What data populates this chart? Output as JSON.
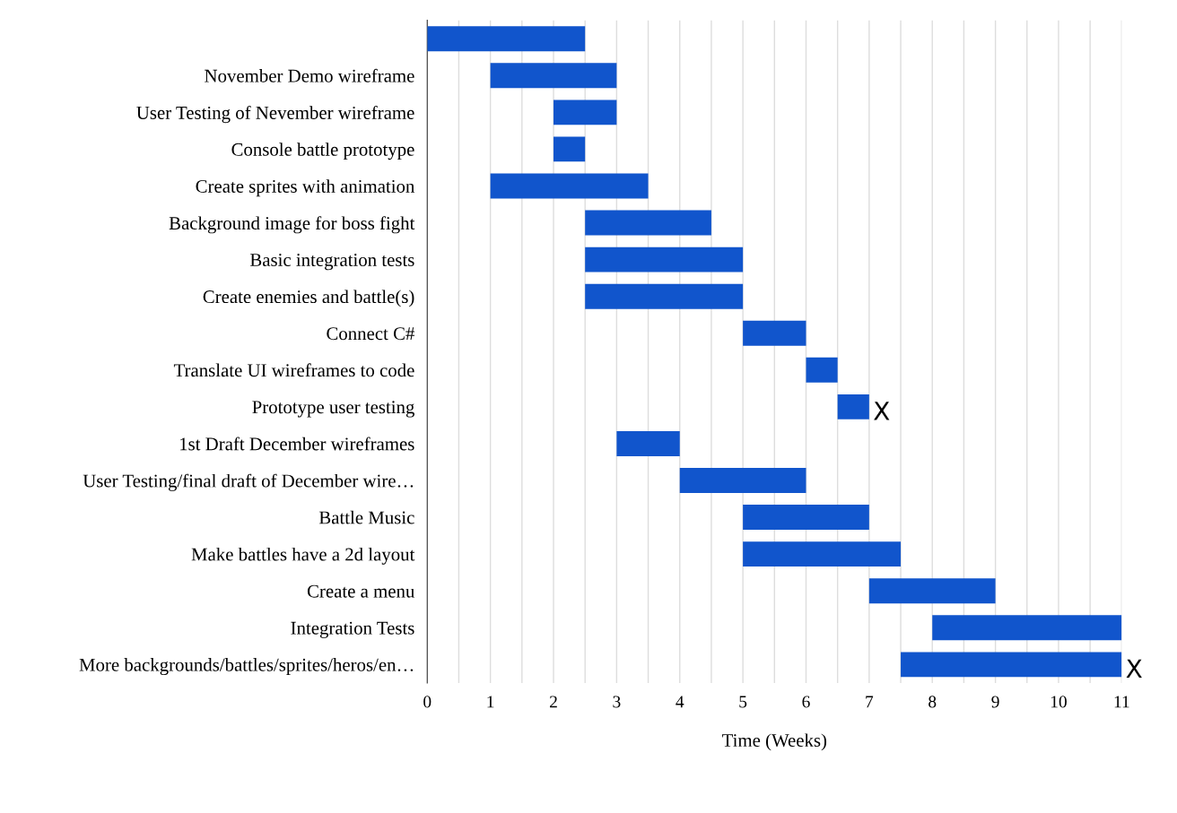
{
  "chart_data": {
    "type": "bar",
    "orientation": "horizontal",
    "xlabel": "Time (Weeks)",
    "categories": [
      null,
      "November Demo wireframe",
      "User Testing of Nevember wireframe",
      "Console battle prototype",
      "Create sprites with animation",
      "Background image for boss fight",
      "Basic integration tests",
      "Create enemies and battle(s)",
      "Connect C#",
      "Translate UI wireframes to code",
      "Prototype user testing",
      "1st Draft December wireframes",
      "User Testing/final draft of December wire…",
      "Battle Music",
      "Make battles have a 2d layout",
      "Create a menu",
      "Integration Tests",
      "More backgrounds/battles/sprites/heros/en…"
    ],
    "base": [
      0,
      1,
      2,
      2,
      1,
      2.5,
      2.5,
      2.5,
      5,
      6,
      6.5,
      3,
      4,
      5,
      5,
      7,
      8,
      7.5
    ],
    "values": [
      2.5,
      2,
      1,
      0.5,
      2.5,
      2,
      2.5,
      2.5,
      1,
      0.5,
      0.5,
      1,
      2,
      2,
      2.5,
      2,
      3,
      3.5
    ],
    "color": "#1155cc",
    "xlim": [
      0,
      11
    ],
    "xticks": [
      0,
      {
        "value": 0.5,
        "label": null
      },
      1,
      {
        "value": 1.5,
        "label": null
      },
      2,
      {
        "value": 2.5,
        "label": null
      },
      3,
      {
        "value": 3.5,
        "label": null
      },
      4,
      {
        "value": 4.5,
        "label": null
      },
      5,
      {
        "value": 5.5,
        "label": null
      },
      6,
      {
        "value": 6.5,
        "label": null
      },
      7,
      {
        "value": 7.5,
        "label": null
      },
      8,
      {
        "value": 8.5,
        "label": null
      },
      9,
      {
        "value": 9.5,
        "label": null
      },
      10,
      {
        "value": 10.5,
        "label": null
      },
      11
    ],
    "grid": "x",
    "annotations": [
      {
        "text": "X",
        "x": 7,
        "y": "Prototype user testing"
      },
      {
        "text": "X",
        "x": 11,
        "y": "More backgrounds/battles/sprites/heros/en…"
      }
    ]
  }
}
